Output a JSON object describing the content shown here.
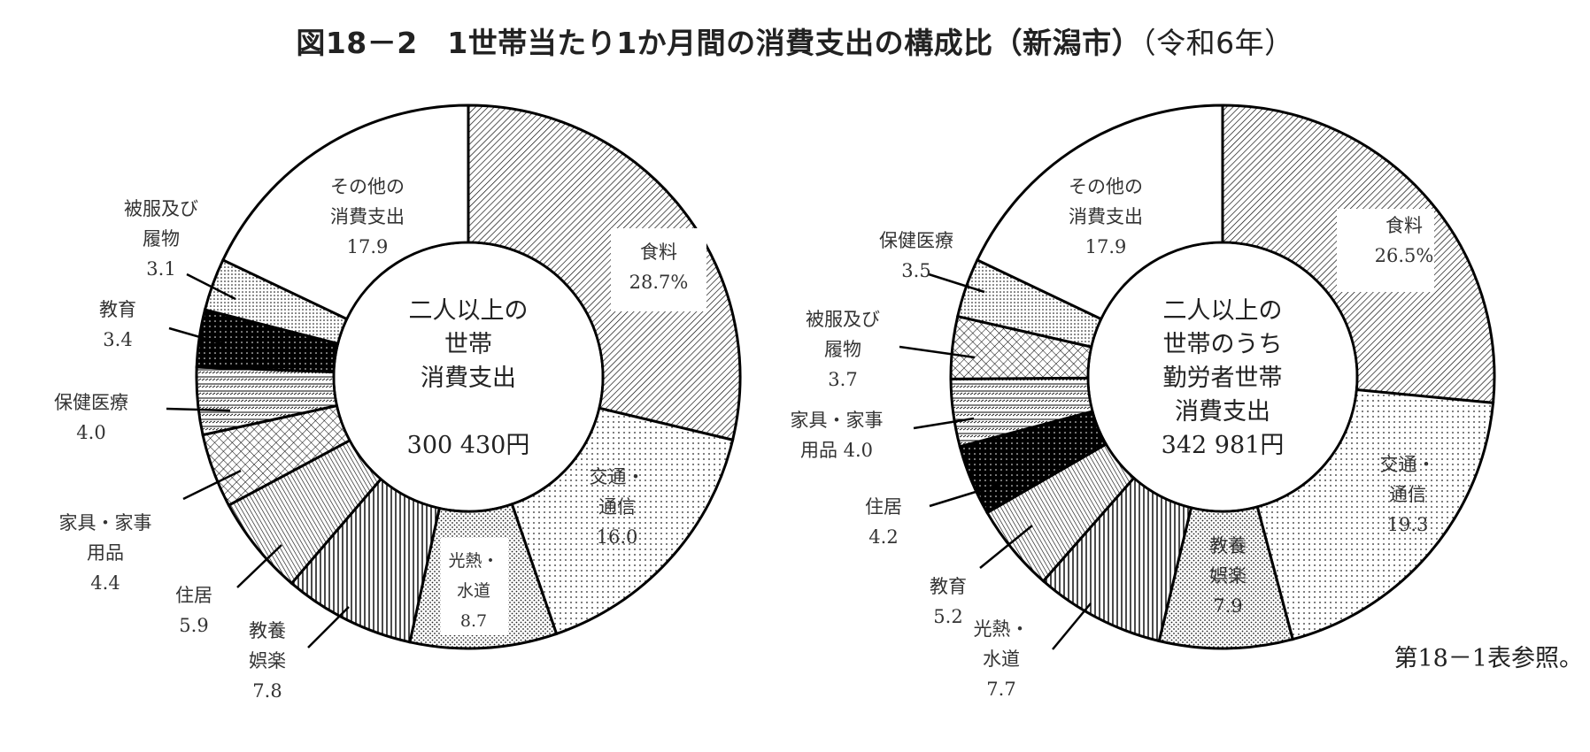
{
  "title": {
    "main": "図18－2　1世帯当たり1か月間の消費支出の構成比（新潟市）",
    "era": "（令和6年）"
  },
  "note": "第18－1表参照。",
  "chart_data": [
    {
      "type": "pie",
      "subtype": "donut",
      "title": "二人以上の世帯 消費支出",
      "center_label": [
        "二人以上の",
        "世帯",
        "消費支出",
        "",
        "300 430円"
      ],
      "total_yen": 300430,
      "unit": "%",
      "categories": [
        "食料",
        "交通・通信",
        "光熱・水道",
        "教養娯楽",
        "住居",
        "家具・家事用品",
        "保健医療",
        "教育",
        "被服及び履物",
        "その他の消費支出"
      ],
      "values": [
        28.7,
        16.0,
        8.7,
        7.8,
        5.9,
        4.4,
        4.0,
        3.4,
        3.1,
        17.9
      ],
      "labels": [
        {
          "lines": [
            "食料",
            "28.7%"
          ]
        },
        {
          "lines": [
            "交通・",
            "通信",
            "16.0"
          ]
        },
        {
          "lines": [
            "光熱・",
            "水道",
            "8.7"
          ]
        },
        {
          "lines": [
            "教養",
            "娯楽",
            "7.8"
          ]
        },
        {
          "lines": [
            "住居",
            "5.9"
          ]
        },
        {
          "lines": [
            "家具・家事",
            "用品",
            "4.4"
          ]
        },
        {
          "lines": [
            "保健医療",
            "4.0"
          ]
        },
        {
          "lines": [
            "教育",
            "3.4"
          ]
        },
        {
          "lines": [
            "被服及び",
            "履物",
            "3.1"
          ]
        },
        {
          "lines": [
            "その他の",
            "消費支出",
            "17.9"
          ]
        }
      ]
    },
    {
      "type": "pie",
      "subtype": "donut",
      "title": "二人以上の世帯のうち勤労者世帯 消費支出",
      "center_label": [
        "二人以上の",
        "世帯のうち",
        "勤労者世帯",
        "消費支出",
        "342 981円"
      ],
      "total_yen": 342981,
      "unit": "%",
      "categories": [
        "食料",
        "交通・通信",
        "教養娯楽",
        "光熱・水道",
        "教育",
        "住居",
        "家具・家事用品",
        "被服及び履物",
        "保健医療",
        "その他の消費支出"
      ],
      "values": [
        26.5,
        19.3,
        7.9,
        7.7,
        5.2,
        4.2,
        4.0,
        3.7,
        3.5,
        17.9
      ],
      "labels": [
        {
          "lines": [
            "食料",
            "26.5%"
          ]
        },
        {
          "lines": [
            "交通・",
            "通信",
            "19.3"
          ]
        },
        {
          "lines": [
            "教養",
            "娯楽",
            "7.9"
          ]
        },
        {
          "lines": [
            "光熱・",
            "水道",
            "7.7"
          ]
        },
        {
          "lines": [
            "教育",
            "5.2"
          ]
        },
        {
          "lines": [
            "住居",
            "4.2"
          ]
        },
        {
          "lines": [
            "家具・家事",
            "用品 4.0"
          ]
        },
        {
          "lines": [
            "被服及び",
            "履物",
            "3.7"
          ]
        },
        {
          "lines": [
            "保健医療",
            "3.5"
          ]
        },
        {
          "lines": [
            "その他の",
            "消費支出",
            "17.9"
          ]
        }
      ]
    }
  ]
}
